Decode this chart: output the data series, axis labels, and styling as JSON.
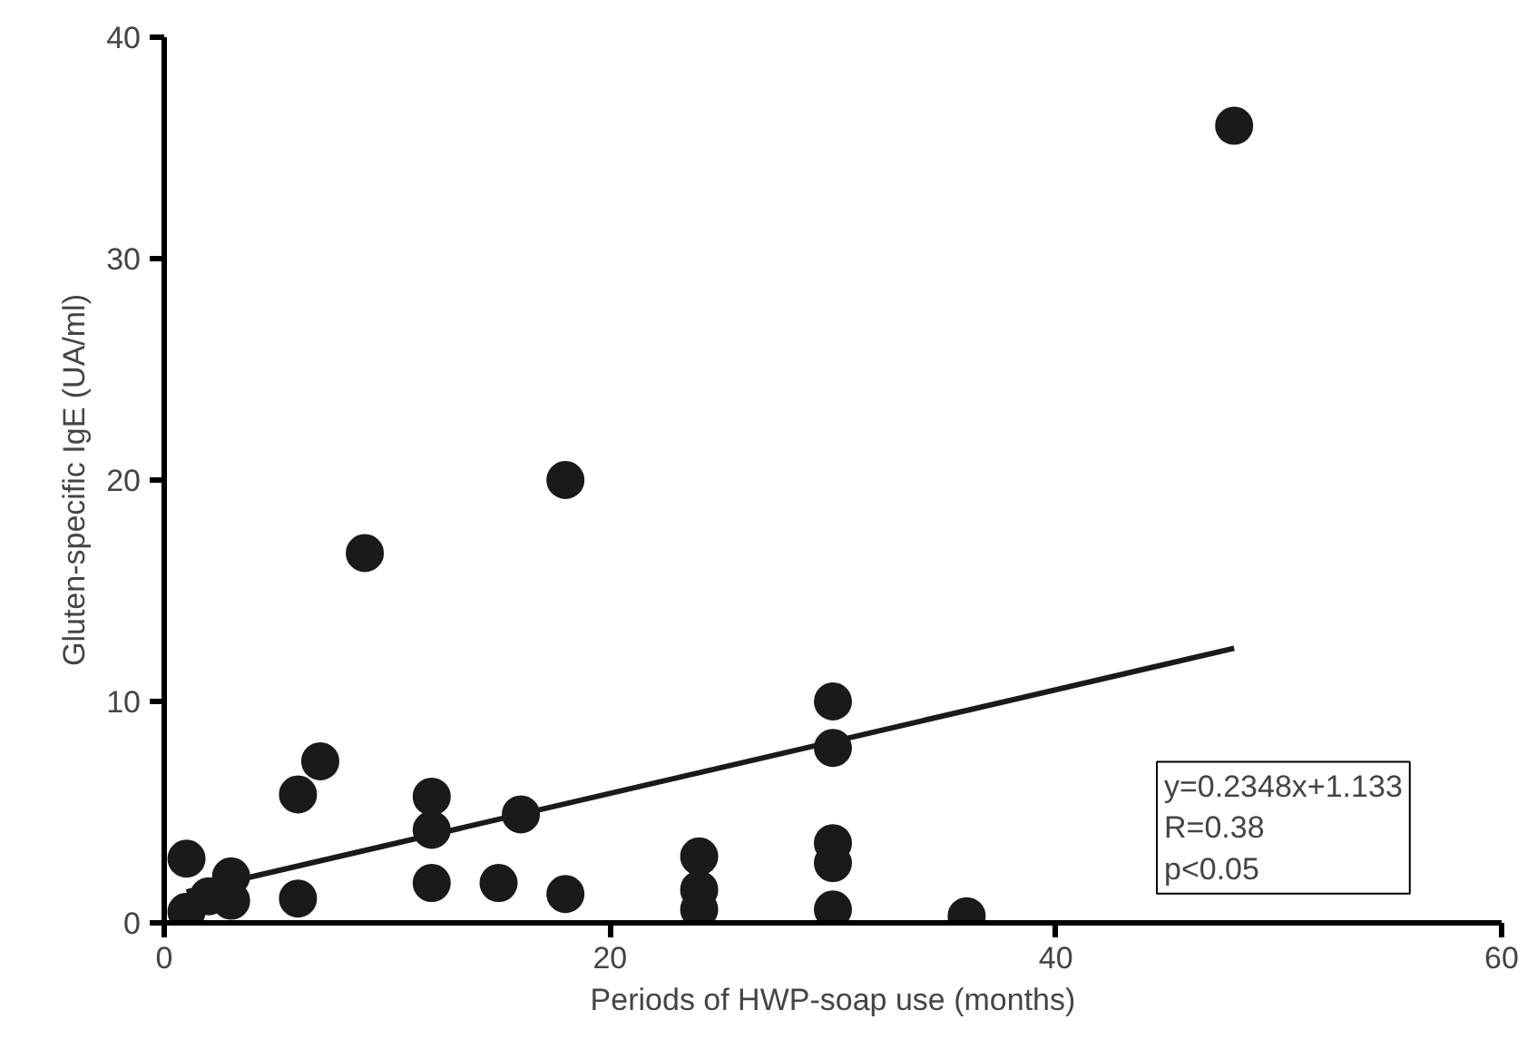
{
  "chart_data": {
    "type": "scatter",
    "xlabel": "Periods of HWP-soap use (months)",
    "ylabel": "Gluten-specific IgE (UA/ml)",
    "xlim": [
      0,
      60
    ],
    "ylim": [
      0,
      40
    ],
    "xticks": [
      0,
      20,
      40,
      60
    ],
    "yticks": [
      0,
      10,
      20,
      30,
      40
    ],
    "grid": false,
    "annotations": [
      "y=0.2348x+1.133",
      "R=0.38",
      "p<0.05"
    ],
    "series": [
      {
        "color": "#1a1a1a",
        "marker": "circle",
        "x": [
          1,
          1,
          2,
          3,
          3,
          6,
          6,
          7,
          9,
          12,
          12,
          12,
          15,
          16,
          18,
          18,
          24,
          24,
          24,
          30,
          30,
          30,
          30,
          30,
          36,
          48
        ],
        "values": [
          2.9,
          0.5,
          1.2,
          2.1,
          1.0,
          5.8,
          1.1,
          7.3,
          16.7,
          5.7,
          4.2,
          1.8,
          1.8,
          4.9,
          20,
          1.3,
          3.0,
          1.5,
          0.6,
          10,
          7.9,
          3.6,
          2.7,
          0.6,
          0.3,
          36
        ]
      },
      {
        "type": "line",
        "color": "#1a1a1a",
        "x": [
          1,
          48
        ],
        "values": [
          1.4,
          12.4
        ]
      }
    ]
  }
}
